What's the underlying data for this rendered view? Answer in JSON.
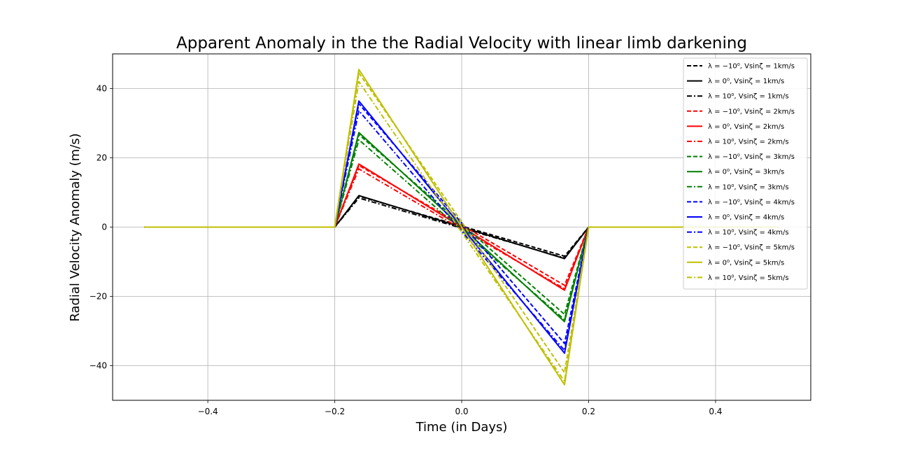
{
  "chart_data": {
    "type": "line",
    "title": "Apparent Anomaly in the the Radial Velocity with linear limb darkening",
    "xlabel": "Time (in Days)",
    "ylabel": "Radial Velocity Anomaly (m/s)",
    "xlim": [
      -0.55,
      0.55
    ],
    "ylim": [
      -50,
      50
    ],
    "xticks": [
      -0.4,
      -0.2,
      0.0,
      0.2,
      0.4
    ],
    "xtick_labels": [
      "−0.4",
      "−0.2",
      "0.0",
      "0.2",
      "0.4"
    ],
    "yticks": [
      -40,
      -20,
      0,
      20,
      40
    ],
    "ytick_labels": [
      "−40",
      "−20",
      "0",
      "20",
      "40"
    ],
    "grid": true,
    "legend_position": "top-right",
    "series": [
      {
        "name": "λ = −10⁰, Vsinζ = 1km/s",
        "color": "#000000",
        "style": "dashed",
        "x": [
          -0.5,
          -0.2,
          -0.162,
          0.0,
          0.162,
          0.2,
          0.5
        ],
        "y": [
          0,
          0,
          8.9,
          0.3,
          -8.4,
          0,
          0
        ]
      },
      {
        "name": "λ = 0⁰, Vsinζ = 1km/s",
        "color": "#000000",
        "style": "solid",
        "x": [
          -0.5,
          -0.2,
          -0.162,
          0.0,
          0.162,
          0.2,
          0.5
        ],
        "y": [
          0,
          0,
          9.1,
          0,
          -9.1,
          0,
          0
        ]
      },
      {
        "name": "λ = 10⁰, Vsinζ = 1km/s",
        "color": "#000000",
        "style": "dashdot",
        "x": [
          -0.5,
          -0.2,
          -0.162,
          0.0,
          0.162,
          0.2,
          0.5
        ],
        "y": [
          0,
          0,
          8.4,
          -0.3,
          -8.9,
          0,
          0
        ]
      },
      {
        "name": "λ = −10⁰, Vsinζ = 2km/s",
        "color": "#ff0000",
        "style": "dashed",
        "x": [
          -0.5,
          -0.2,
          -0.162,
          0.0,
          0.162,
          0.2,
          0.5
        ],
        "y": [
          0,
          0,
          17.8,
          0.6,
          -16.8,
          0,
          0
        ]
      },
      {
        "name": "λ = 0⁰, Vsinζ = 2km/s",
        "color": "#ff0000",
        "style": "solid",
        "x": [
          -0.5,
          -0.2,
          -0.162,
          0.0,
          0.162,
          0.2,
          0.5
        ],
        "y": [
          0,
          0,
          18.2,
          0,
          -18.2,
          0,
          0
        ]
      },
      {
        "name": "λ = 10⁰, Vsinζ = 2km/s",
        "color": "#ff0000",
        "style": "dashdot",
        "x": [
          -0.5,
          -0.2,
          -0.162,
          0.0,
          0.162,
          0.2,
          0.5
        ],
        "y": [
          0,
          0,
          16.8,
          -0.6,
          -17.8,
          0,
          0
        ]
      },
      {
        "name": "λ = −10⁰, Vsinζ = 3km/s",
        "color": "#008000",
        "style": "dashed",
        "x": [
          -0.5,
          -0.2,
          -0.162,
          0.0,
          0.162,
          0.2,
          0.5
        ],
        "y": [
          0,
          0,
          26.7,
          0.9,
          -25.2,
          0,
          0
        ]
      },
      {
        "name": "λ = 0⁰, Vsinζ = 3km/s",
        "color": "#008000",
        "style": "solid",
        "x": [
          -0.5,
          -0.2,
          -0.162,
          0.0,
          0.162,
          0.2,
          0.5
        ],
        "y": [
          0,
          0,
          27.3,
          0,
          -27.3,
          0,
          0
        ]
      },
      {
        "name": "λ = 10⁰, Vsinζ = 3km/s",
        "color": "#008000",
        "style": "dashdot",
        "x": [
          -0.5,
          -0.2,
          -0.162,
          0.0,
          0.162,
          0.2,
          0.5
        ],
        "y": [
          0,
          0,
          25.2,
          -0.9,
          -26.7,
          0,
          0
        ]
      },
      {
        "name": "λ = −10⁰, Vsinζ = 4km/s",
        "color": "#0000ff",
        "style": "dashed",
        "x": [
          -0.5,
          -0.2,
          -0.162,
          0.0,
          0.162,
          0.2,
          0.5
        ],
        "y": [
          0,
          0,
          35.6,
          1.2,
          -33.6,
          0,
          0
        ]
      },
      {
        "name": "λ = 0⁰, Vsinζ = 4km/s",
        "color": "#0000ff",
        "style": "solid",
        "x": [
          -0.5,
          -0.2,
          -0.162,
          0.0,
          0.162,
          0.2,
          0.5
        ],
        "y": [
          0,
          0,
          36.4,
          0,
          -36.4,
          0,
          0
        ]
      },
      {
        "name": "λ = 10⁰, Vsinζ = 4km/s",
        "color": "#0000ff",
        "style": "dashdot",
        "x": [
          -0.5,
          -0.2,
          -0.162,
          0.0,
          0.162,
          0.2,
          0.5
        ],
        "y": [
          0,
          0,
          33.6,
          -1.2,
          -35.6,
          0,
          0
        ]
      },
      {
        "name": "λ = −10⁰, Vsinζ = 5km/s",
        "color": "#bfbf00",
        "style": "dashed",
        "x": [
          -0.5,
          -0.2,
          -0.162,
          0.0,
          0.162,
          0.2,
          0.5
        ],
        "y": [
          0,
          0,
          44.5,
          1.5,
          -42.0,
          0,
          0
        ]
      },
      {
        "name": "λ = 0⁰, Vsinζ = 5km/s",
        "color": "#bfbf00",
        "style": "solid",
        "x": [
          -0.5,
          -0.2,
          -0.162,
          0.0,
          0.162,
          0.2,
          0.5
        ],
        "y": [
          0,
          0,
          45.5,
          0,
          -45.5,
          0,
          0
        ]
      },
      {
        "name": "λ = 10⁰, Vsinζ = 5km/s",
        "color": "#bfbf00",
        "style": "dashdot",
        "x": [
          -0.5,
          -0.2,
          -0.162,
          0.0,
          0.162,
          0.2,
          0.5
        ],
        "y": [
          0,
          0,
          42.0,
          -1.5,
          -44.5,
          0,
          0
        ]
      }
    ]
  }
}
